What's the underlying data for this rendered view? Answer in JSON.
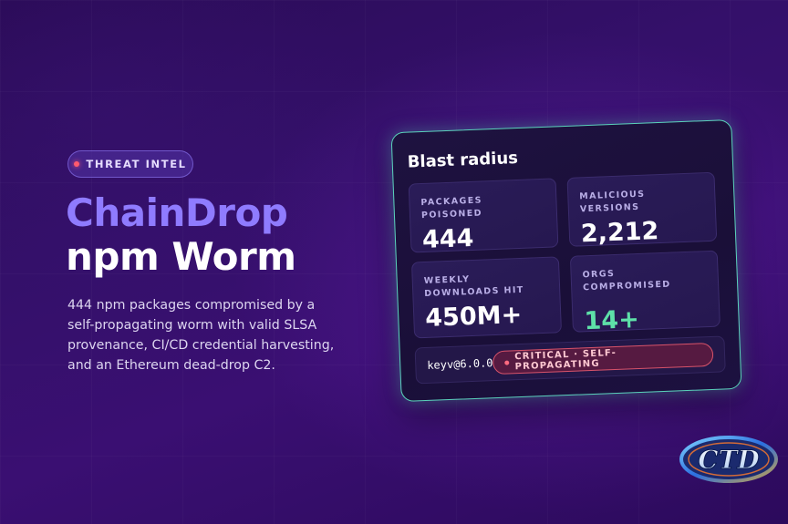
{
  "hero": {
    "tag_label": "THREAT INTEL",
    "title_line1": "ChainDrop",
    "title_line2": "npm Worm",
    "description": "444 npm packages compromised by a self-propagating worm with valid SLSA provenance, CI/CD credential harvesting, and an Ethereum dead-drop C2."
  },
  "card": {
    "title": "Blast radius",
    "stats": [
      {
        "label": "PACKAGES POISONED",
        "value": "444"
      },
      {
        "label": "MALICIOUS VERSIONS",
        "value": "2,212"
      },
      {
        "label": "WEEKLY DOWNLOADS HIT",
        "value": "450M+"
      },
      {
        "label": "ORGS COMPROMISED",
        "value": "14+"
      }
    ],
    "package": "keyv@6.0.0",
    "severity_badge": "CRITICAL · SELF-PROPAGATING"
  },
  "logo": {
    "text": "CTD"
  },
  "colors": {
    "accent_purple": "#8f7bff",
    "card_border": "#59d4b8",
    "green_value": "#5ee0a8",
    "critical_red": "#ff5a6e"
  },
  "icons": {
    "tag_dot": "status-dot-icon",
    "badge_dot": "severity-dot-icon",
    "logo": "ctd-logo-icon"
  }
}
